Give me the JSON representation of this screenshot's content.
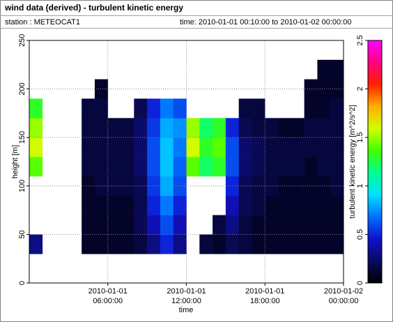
{
  "chart_data": {
    "type": "heatmap",
    "title": "wind data (derived) - turbulent kinetic energy",
    "station": "station : METEOCAT1",
    "time_range": "time: 2010-01-01 00:10:00 to 2010-01-02 00:00:00",
    "xlabel": "time",
    "ylabel": "height [m]",
    "zlabel": "turbulent kinetic energy [m^2/s^2]",
    "x": [
      "2010-01-01 00:00:00",
      "2010-01-01 01:00:00",
      "2010-01-01 02:00:00",
      "2010-01-01 03:00:00",
      "2010-01-01 04:00:00",
      "2010-01-01 05:00:00",
      "2010-01-01 06:00:00",
      "2010-01-01 07:00:00",
      "2010-01-01 08:00:00",
      "2010-01-01 09:00:00",
      "2010-01-01 10:00:00",
      "2010-01-01 11:00:00",
      "2010-01-01 12:00:00",
      "2010-01-01 13:00:00",
      "2010-01-01 14:00:00",
      "2010-01-01 15:00:00",
      "2010-01-01 16:00:00",
      "2010-01-01 17:00:00",
      "2010-01-01 18:00:00",
      "2010-01-01 19:00:00",
      "2010-01-01 20:00:00",
      "2010-01-01 21:00:00",
      "2010-01-01 22:00:00",
      "2010-01-01 23:00:00",
      "2010-01-02 00:00:00"
    ],
    "y_bins": [
      30,
      50,
      70,
      90,
      110,
      130,
      150,
      170,
      190,
      210,
      230
    ],
    "z": [
      [
        0.3,
        null,
        null,
        null,
        1.4,
        1.6,
        1.5,
        1.3,
        null,
        null
      ],
      [
        null,
        null,
        null,
        null,
        null,
        null,
        null,
        null,
        null,
        null
      ],
      [
        null,
        null,
        null,
        null,
        null,
        null,
        null,
        null,
        null,
        null
      ],
      [
        null,
        null,
        null,
        null,
        null,
        null,
        null,
        null,
        null,
        null
      ],
      [
        0.1,
        0.1,
        0.1,
        0.1,
        0.15,
        0.15,
        0.15,
        0.15,
        null,
        null
      ],
      [
        0.1,
        0.1,
        0.1,
        0.15,
        0.15,
        0.15,
        0.15,
        0.15,
        0.1,
        null
      ],
      [
        0.1,
        0.1,
        0.1,
        0.15,
        0.15,
        0.15,
        0.15,
        null,
        null,
        null
      ],
      [
        0.1,
        0.1,
        0.1,
        0.15,
        0.15,
        0.15,
        0.15,
        null,
        null,
        null
      ],
      [
        0.15,
        0.2,
        0.2,
        0.2,
        0.25,
        0.25,
        0.25,
        0.2,
        null,
        null
      ],
      [
        0.3,
        0.4,
        0.5,
        0.55,
        0.6,
        0.6,
        0.55,
        0.5,
        null,
        null
      ],
      [
        0.5,
        0.6,
        0.7,
        0.8,
        0.85,
        0.85,
        0.8,
        0.7,
        null,
        null
      ],
      [
        0.3,
        0.4,
        0.5,
        0.6,
        0.65,
        0.7,
        0.75,
        0.6,
        null,
        null
      ],
      [
        null,
        null,
        null,
        null,
        1.4,
        1.6,
        1.5,
        null,
        null,
        null
      ],
      [
        0.15,
        null,
        null,
        null,
        1.2,
        1.3,
        1.2,
        null,
        null,
        null
      ],
      [
        0.1,
        0.15,
        null,
        null,
        1.3,
        1.4,
        1.3,
        null,
        null,
        null
      ],
      [
        0.2,
        0.3,
        0.4,
        0.5,
        0.6,
        0.6,
        0.5,
        null,
        null,
        null
      ],
      [
        0.15,
        0.15,
        0.2,
        0.2,
        0.25,
        0.25,
        0.2,
        0.15,
        null,
        null
      ],
      [
        0.1,
        0.1,
        0.15,
        0.15,
        0.2,
        0.2,
        0.15,
        0.15,
        null,
        null
      ],
      [
        0.1,
        0.1,
        0.1,
        0.15,
        0.15,
        0.15,
        0.15,
        null,
        null,
        null
      ],
      [
        0.1,
        0.1,
        0.1,
        0.1,
        0.15,
        0.15,
        0.1,
        null,
        null,
        null
      ],
      [
        0.1,
        0.1,
        0.1,
        0.1,
        0.15,
        0.15,
        0.1,
        null,
        null,
        null
      ],
      [
        0.1,
        0.1,
        0.1,
        0.1,
        0.1,
        0.15,
        0.15,
        0.1,
        0.1,
        null
      ],
      [
        0.1,
        0.1,
        0.1,
        0.1,
        0.15,
        0.15,
        0.15,
        0.1,
        0.1,
        0.1
      ],
      [
        0.1,
        0.1,
        0.1,
        0.15,
        0.15,
        0.15,
        0.15,
        0.15,
        0.1,
        0.1
      ]
    ],
    "xlim": [
      "2010-01-01 00:00:00",
      "2010-01-02 00:00:00"
    ],
    "xticks": [
      {
        "value": "2010-01-01 06:00:00",
        "label": [
          "2010-01-01",
          "06:00:00"
        ]
      },
      {
        "value": "2010-01-01 12:00:00",
        "label": [
          "2010-01-01",
          "12:00:00"
        ]
      },
      {
        "value": "2010-01-01 18:00:00",
        "label": [
          "2010-01-01",
          "18:00:00"
        ]
      },
      {
        "value": "2010-01-02 00:00:00",
        "label": [
          "2010-01-02",
          "00:00:00"
        ]
      }
    ],
    "ylim": [
      0,
      250
    ],
    "yticks": [
      0,
      50,
      100,
      150,
      200,
      250
    ],
    "zlim": [
      0,
      2.5
    ],
    "zticks": [
      0,
      0.5,
      1,
      1.5,
      2,
      2.5
    ],
    "colorscale": [
      "#000000",
      "#0a0a60",
      "#1010d0",
      "#0070ff",
      "#00e0ff",
      "#00ff90",
      "#40ff00",
      "#d0ff00",
      "#ffb000",
      "#ff2000",
      "#ff0080",
      "#ff00ff"
    ],
    "grid": true
  }
}
